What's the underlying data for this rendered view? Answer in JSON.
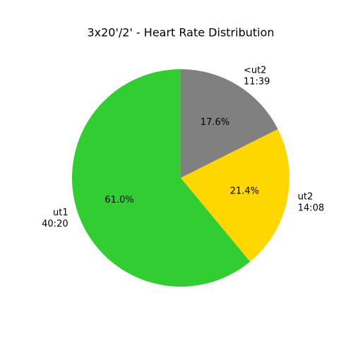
{
  "chart_data": {
    "type": "pie",
    "title": "3x20'/2' - Heart Rate Distribution",
    "start_angle_deg": 90,
    "direction": "clockwise",
    "slices": [
      {
        "label": "<ut2",
        "time": "11:39",
        "percent_label": "17.6%",
        "value": 17.6,
        "color": "#808080"
      },
      {
        "label": "ut2",
        "time": "14:08",
        "percent_label": "21.4%",
        "value": 21.4,
        "color": "#FFD700"
      },
      {
        "label": "ut1",
        "time": "40:20",
        "percent_label": "61.0%",
        "value": 61.0,
        "color": "#32CD32"
      }
    ]
  }
}
